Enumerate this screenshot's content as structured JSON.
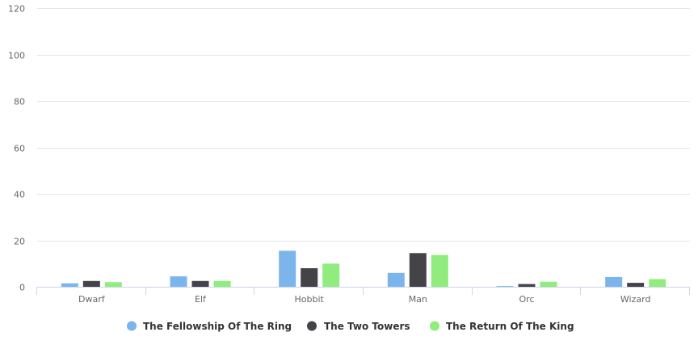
{
  "chart_data": {
    "type": "bar",
    "categories": [
      "Dwarf",
      "Elf",
      "Hobbit",
      "Man",
      "Orc",
      "Wizard"
    ],
    "series": [
      {
        "name": "The Fellowship Of The Ring",
        "color": "#7cb5ec",
        "values": [
          1.5,
          4.5,
          15.5,
          6,
          0.3,
          4.2
        ]
      },
      {
        "name": "The Two Towers",
        "color": "#434348",
        "values": [
          2.5,
          2.5,
          8,
          14.5,
          1.2,
          1.7
        ]
      },
      {
        "name": "The Return Of The King",
        "color": "#90ed7d",
        "values": [
          2,
          2.5,
          10,
          13.7,
          2.2,
          3.3
        ]
      }
    ],
    "ylim": [
      0,
      120
    ],
    "yticks": [
      0,
      20,
      40,
      60,
      80,
      100,
      120
    ],
    "grid": true,
    "legend_position": "bottom-center"
  }
}
